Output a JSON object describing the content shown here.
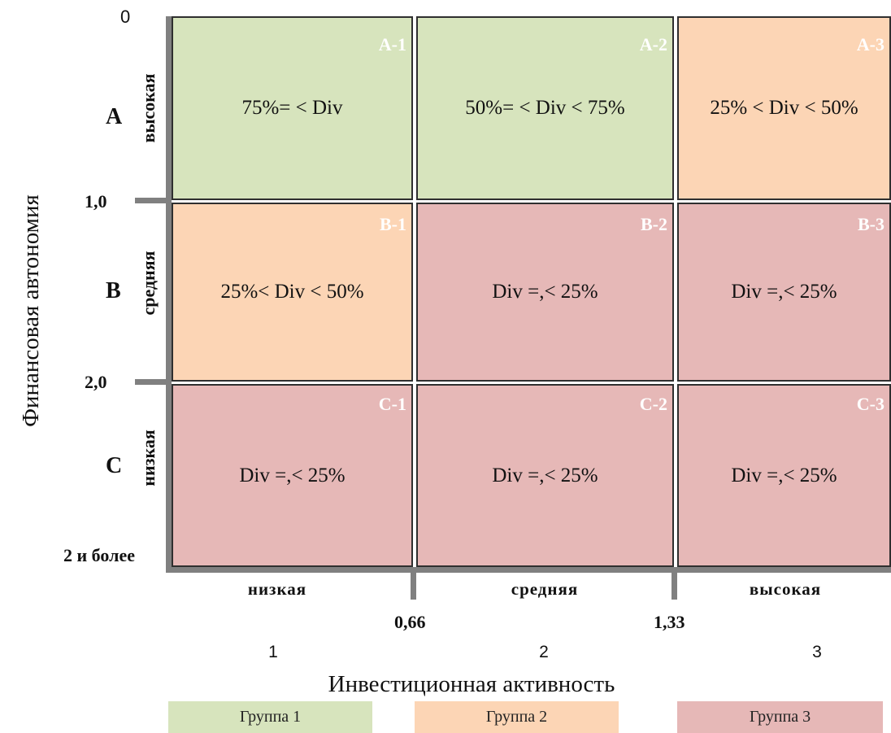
{
  "colors": {
    "group1": "#d7e4bd",
    "group2": "#fcd5b5",
    "group3": "#e6b8b7",
    "axis": "#808080",
    "border": "#2f2f2f"
  },
  "y_axis": {
    "title": "Финансовая автономия",
    "ticks": [
      "0",
      "1,0",
      "2,0",
      "2 и более"
    ],
    "rows": [
      {
        "letter": "A",
        "label": "высокая"
      },
      {
        "letter": "B",
        "label": "средняя"
      },
      {
        "letter": "C",
        "label": "низкая"
      }
    ]
  },
  "x_axis": {
    "title": "Инвестиционная активность",
    "categories": [
      "низкая",
      "средняя",
      "высокая"
    ],
    "ticks": [
      "0,66",
      "1,33"
    ],
    "numbers": [
      "1",
      "2",
      "3"
    ]
  },
  "cells": [
    [
      {
        "id": "A-1",
        "rule": "75%= < Div",
        "group": 1
      },
      {
        "id": "A-2",
        "rule": "50%= < Div < 75%",
        "group": 1
      },
      {
        "id": "A-3",
        "rule": "25% < Div < 50%",
        "group": 2
      }
    ],
    [
      {
        "id": "B-1",
        "rule": "25%< Div < 50%",
        "group": 2
      },
      {
        "id": "B-2",
        "rule": "Div =,< 25%",
        "group": 3
      },
      {
        "id": "B-3",
        "rule": "Div =,< 25%",
        "group": 3
      }
    ],
    [
      {
        "id": "C-1",
        "rule": "Div =,< 25%",
        "group": 3
      },
      {
        "id": "C-2",
        "rule": "Div =,< 25%",
        "group": 3
      },
      {
        "id": "C-3",
        "rule": "Div =,< 25%",
        "group": 3
      }
    ]
  ],
  "legend": [
    {
      "label": "Группа 1",
      "group": 1
    },
    {
      "label": "Группа 2",
      "group": 2
    },
    {
      "label": "Группа 3",
      "group": 3
    }
  ]
}
